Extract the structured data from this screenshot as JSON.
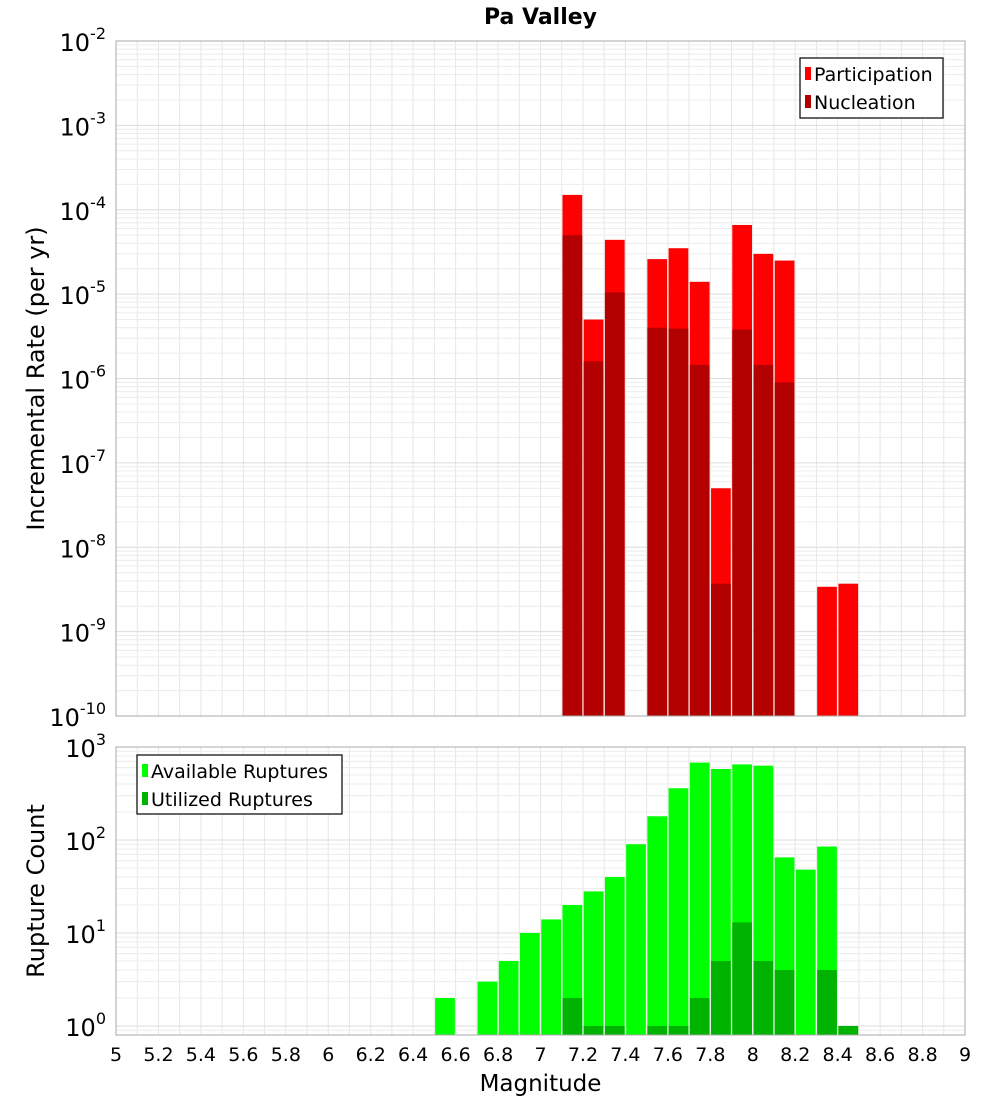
{
  "chart_data": [
    {
      "type": "bar",
      "title": "Pa Valley",
      "ylabel": "Incremental Rate (per yr)",
      "xlabel": "",
      "yscale": "log",
      "ylim": [
        1e-10,
        0.01
      ],
      "xlim": [
        5,
        9
      ],
      "ytick_labels": [
        {
          "base": "10",
          "exp": "-2"
        },
        {
          "base": "10",
          "exp": "-3"
        },
        {
          "base": "10",
          "exp": "-4"
        },
        {
          "base": "10",
          "exp": "-5"
        },
        {
          "base": "10",
          "exp": "-6"
        },
        {
          "base": "10",
          "exp": "-7"
        },
        {
          "base": "10",
          "exp": "-8"
        },
        {
          "base": "10",
          "exp": "-9"
        },
        {
          "base": "10",
          "exp": "-10"
        }
      ],
      "grid": true,
      "legend_position": "top-right",
      "series": [
        {
          "name": "Participation",
          "color": "#ff0000",
          "points": [
            {
              "x": 7.15,
              "y": 0.00015
            },
            {
              "x": 7.25,
              "y": 5e-06
            },
            {
              "x": 7.35,
              "y": 4.4e-05
            },
            {
              "x": 7.55,
              "y": 2.6e-05
            },
            {
              "x": 7.65,
              "y": 3.5e-05
            },
            {
              "x": 7.75,
              "y": 1.4e-05
            },
            {
              "x": 7.85,
              "y": 5e-08
            },
            {
              "x": 7.95,
              "y": 6.6e-05
            },
            {
              "x": 8.05,
              "y": 3e-05
            },
            {
              "x": 8.15,
              "y": 2.5e-05
            },
            {
              "x": 8.35,
              "y": 3.4e-09
            },
            {
              "x": 8.45,
              "y": 3.7e-09
            }
          ]
        },
        {
          "name": "Nucleation",
          "color": "#b30000",
          "points": [
            {
              "x": 7.15,
              "y": 5e-05
            },
            {
              "x": 7.25,
              "y": 1.6e-06
            },
            {
              "x": 7.35,
              "y": 1.05e-05
            },
            {
              "x": 7.55,
              "y": 4e-06
            },
            {
              "x": 7.65,
              "y": 3.9e-06
            },
            {
              "x": 7.75,
              "y": 1.45e-06
            },
            {
              "x": 7.85,
              "y": 3.7e-09
            },
            {
              "x": 7.95,
              "y": 3.8e-06
            },
            {
              "x": 8.05,
              "y": 1.45e-06
            },
            {
              "x": 8.15,
              "y": 9e-07
            }
          ]
        }
      ]
    },
    {
      "type": "bar",
      "title": "",
      "ylabel": "Rupture Count",
      "xlabel": "Magnitude",
      "yscale": "log",
      "ylim": [
        0.8,
        1000
      ],
      "xlim": [
        5,
        9
      ],
      "xticks": [
        "5",
        "5.2",
        "5.4",
        "5.6",
        "5.8",
        "6",
        "6.2",
        "6.4",
        "6.6",
        "6.8",
        "7",
        "7.2",
        "7.4",
        "7.6",
        "7.8",
        "8",
        "8.2",
        "8.4",
        "8.6",
        "8.8",
        "9"
      ],
      "ytick_labels": [
        {
          "base": "10",
          "exp": "3"
        },
        {
          "base": "10",
          "exp": "2"
        },
        {
          "base": "10",
          "exp": "1"
        },
        {
          "base": "10",
          "exp": "0"
        }
      ],
      "grid": true,
      "legend_position": "top-left",
      "series": [
        {
          "name": "Available Ruptures",
          "color": "#00ff00",
          "points": [
            {
              "x": 6.55,
              "y": 2
            },
            {
              "x": 6.75,
              "y": 3
            },
            {
              "x": 6.85,
              "y": 5
            },
            {
              "x": 6.95,
              "y": 10
            },
            {
              "x": 7.05,
              "y": 14
            },
            {
              "x": 7.15,
              "y": 20
            },
            {
              "x": 7.25,
              "y": 28
            },
            {
              "x": 7.35,
              "y": 40
            },
            {
              "x": 7.45,
              "y": 90
            },
            {
              "x": 7.55,
              "y": 180
            },
            {
              "x": 7.65,
              "y": 360
            },
            {
              "x": 7.75,
              "y": 680
            },
            {
              "x": 7.85,
              "y": 580
            },
            {
              "x": 7.95,
              "y": 650
            },
            {
              "x": 8.05,
              "y": 630
            },
            {
              "x": 8.15,
              "y": 65
            },
            {
              "x": 8.25,
              "y": 48
            },
            {
              "x": 8.35,
              "y": 85
            },
            {
              "x": 8.45,
              "y": 1
            }
          ]
        },
        {
          "name": "Utilized Ruptures",
          "color": "#00b300",
          "points": [
            {
              "x": 7.15,
              "y": 2
            },
            {
              "x": 7.25,
              "y": 1
            },
            {
              "x": 7.35,
              "y": 1
            },
            {
              "x": 7.55,
              "y": 1
            },
            {
              "x": 7.65,
              "y": 1
            },
            {
              "x": 7.75,
              "y": 2
            },
            {
              "x": 7.85,
              "y": 5
            },
            {
              "x": 7.95,
              "y": 13
            },
            {
              "x": 8.05,
              "y": 5
            },
            {
              "x": 8.15,
              "y": 4
            },
            {
              "x": 8.35,
              "y": 4
            },
            {
              "x": 8.45,
              "y": 1
            }
          ]
        }
      ]
    }
  ]
}
